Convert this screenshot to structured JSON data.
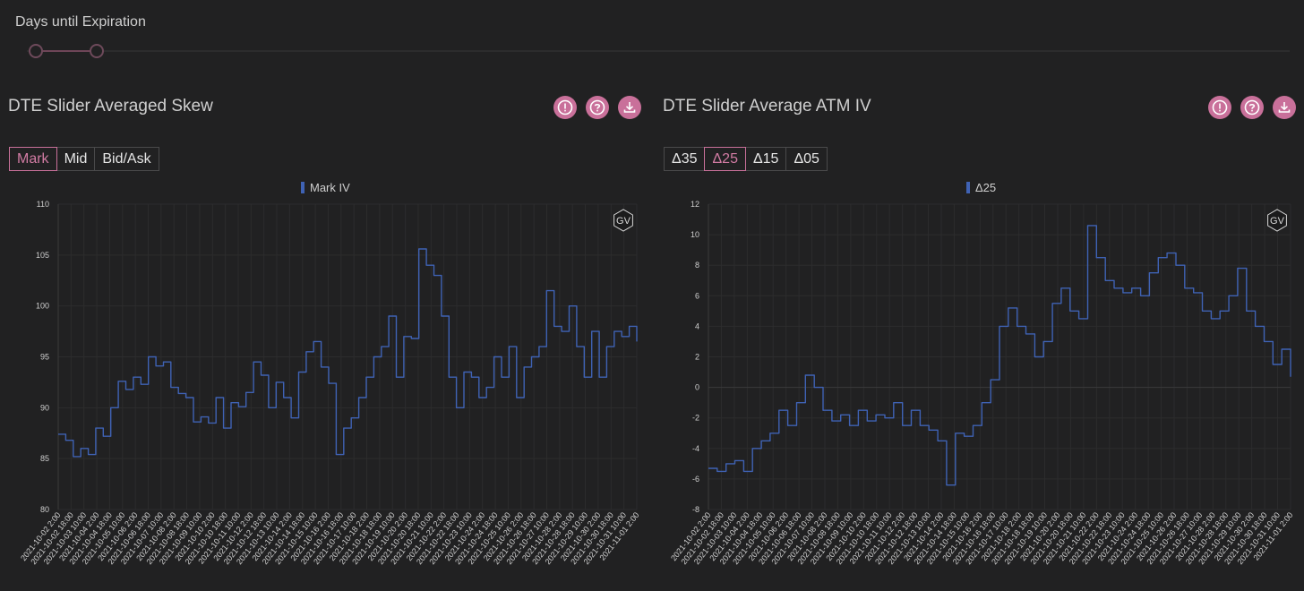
{
  "header": {
    "dte_label": "Days until Expiration"
  },
  "panels": [
    {
      "title": "DTE Slider Averaged Skew",
      "buttons": [
        "Mark",
        "Mid",
        "Bid/Ask"
      ],
      "active": 0,
      "legend": "Mark IV",
      "badge": "GV"
    },
    {
      "title": "DTE Slider Average ATM IV",
      "buttons": [
        "Δ35",
        "Δ25",
        "Δ15",
        "Δ05"
      ],
      "active": 1,
      "legend": "Δ25",
      "badge": "GV"
    }
  ],
  "icons": [
    "info-circle-icon",
    "question-circle-icon",
    "download-icon"
  ],
  "colors": {
    "accent": "#c9709a",
    "series": "#3f62b4",
    "background": "#212122"
  },
  "chart_data": [
    {
      "type": "line",
      "title": "DTE Slider Averaged Skew",
      "series": [
        {
          "name": "Mark IV",
          "points": [
            [
              0,
              87.4
            ],
            [
              1,
              86.8
            ],
            [
              2,
              85.2
            ],
            [
              3,
              86.0
            ],
            [
              4,
              85.4
            ],
            [
              5,
              88.0
            ],
            [
              6,
              87.2
            ],
            [
              7,
              90.0
            ],
            [
              8,
              92.6
            ],
            [
              9,
              91.8
            ],
            [
              10,
              93.0
            ],
            [
              11,
              92.3
            ],
            [
              12,
              95.0
            ],
            [
              13,
              94.1
            ],
            [
              14,
              94.5
            ],
            [
              15,
              92.0
            ],
            [
              16,
              91.4
            ],
            [
              17,
              91.0
            ],
            [
              18,
              88.6
            ],
            [
              19,
              89.1
            ],
            [
              20,
              88.5
            ],
            [
              21,
              91.0
            ],
            [
              22,
              88.0
            ],
            [
              23,
              90.5
            ],
            [
              24,
              90.1
            ],
            [
              25,
              91.5
            ],
            [
              26,
              94.5
            ],
            [
              27,
              93.2
            ],
            [
              28,
              90.0
            ],
            [
              29,
              92.5
            ],
            [
              30,
              91.0
            ],
            [
              31,
              89.0
            ],
            [
              32,
              93.5
            ],
            [
              33,
              95.5
            ],
            [
              34,
              96.5
            ],
            [
              35,
              94.0
            ],
            [
              36,
              92.4
            ],
            [
              37,
              85.4
            ],
            [
              38,
              88.0
            ],
            [
              39,
              89.0
            ],
            [
              40,
              91.0
            ],
            [
              41,
              93.0
            ],
            [
              42,
              95.0
            ],
            [
              43,
              96.0
            ],
            [
              44,
              99.0
            ],
            [
              45,
              93.0
            ],
            [
              46,
              97.0
            ],
            [
              47,
              96.8
            ],
            [
              48,
              105.6
            ],
            [
              49,
              104.0
            ],
            [
              50,
              103.0
            ],
            [
              51,
              99.0
            ],
            [
              52,
              93.0
            ],
            [
              53,
              90.0
            ],
            [
              54,
              93.5
            ],
            [
              55,
              93.0
            ],
            [
              56,
              91.0
            ],
            [
              57,
              92.0
            ],
            [
              58,
              95.0
            ],
            [
              59,
              93.0
            ],
            [
              60,
              96.0
            ],
            [
              61,
              91.0
            ],
            [
              62,
              94.0
            ],
            [
              63,
              95.0
            ],
            [
              64,
              96.0
            ],
            [
              65,
              101.5
            ],
            [
              66,
              98.0
            ],
            [
              67,
              97.5
            ],
            [
              68,
              100.0
            ],
            [
              69,
              96.0
            ],
            [
              70,
              93.0
            ],
            [
              71,
              97.5
            ],
            [
              72,
              93.0
            ],
            [
              73,
              96.0
            ],
            [
              74,
              97.5
            ],
            [
              75,
              97.0
            ],
            [
              76,
              98.0
            ],
            [
              77,
              96.5
            ]
          ]
        }
      ],
      "x_labels": [
        "2021-10-02 2:00",
        "2021-10-02 18:00",
        "2021-10-03 10:00",
        "2021-10-04 2:00",
        "2021-10-04 18:00",
        "2021-10-05 10:00",
        "2021-10-06 2:00",
        "2021-10-06 18:00",
        "2021-10-07 10:00",
        "2021-10-08 2:00",
        "2021-10-08 18:00",
        "2021-10-09 10:00",
        "2021-10-10 2:00",
        "2021-10-10 18:00",
        "2021-10-11 10:00",
        "2021-10-12 2:00",
        "2021-10-12 18:00",
        "2021-10-13 10:00",
        "2021-10-14 2:00",
        "2021-10-14 18:00",
        "2021-10-15 10:00",
        "2021-10-16 2:00",
        "2021-10-16 18:00",
        "2021-10-17 10:00",
        "2021-10-18 2:00",
        "2021-10-18 18:00",
        "2021-10-19 10:00",
        "2021-10-20 2:00",
        "2021-10-20 18:00",
        "2021-10-21 10:00",
        "2021-10-22 2:00",
        "2021-10-22 18:00",
        "2021-10-23 10:00",
        "2021-10-24 2:00",
        "2021-10-24 18:00",
        "2021-10-25 10:00",
        "2021-10-26 2:00",
        "2021-10-26 18:00",
        "2021-10-27 10:00",
        "2021-10-28 2:00",
        "2021-10-28 18:00",
        "2021-10-29 10:00",
        "2021-10-30 2:00",
        "2021-10-30 18:00",
        "2021-10-31 10:00",
        "2021-11-01 2:00"
      ],
      "y_ticks": [
        80,
        85,
        90,
        95,
        100,
        105,
        110
      ],
      "ylim": [
        80,
        110
      ],
      "grid": true,
      "legend_position": "top-center"
    },
    {
      "type": "line",
      "title": "DTE Slider Average ATM IV",
      "series": [
        {
          "name": "Δ25",
          "points": [
            [
              0,
              -5.3
            ],
            [
              1,
              -5.5
            ],
            [
              2,
              -5.0
            ],
            [
              3,
              -4.8
            ],
            [
              4,
              -5.5
            ],
            [
              5,
              -4.0
            ],
            [
              6,
              -3.5
            ],
            [
              7,
              -3.0
            ],
            [
              8,
              -1.5
            ],
            [
              9,
              -2.5
            ],
            [
              10,
              -1.0
            ],
            [
              11,
              0.8
            ],
            [
              12,
              0.0
            ],
            [
              13,
              -1.5
            ],
            [
              14,
              -2.2
            ],
            [
              15,
              -1.8
            ],
            [
              16,
              -2.5
            ],
            [
              17,
              -1.5
            ],
            [
              18,
              -2.2
            ],
            [
              19,
              -1.8
            ],
            [
              20,
              -2.0
            ],
            [
              21,
              -1.0
            ],
            [
              22,
              -2.5
            ],
            [
              23,
              -1.5
            ],
            [
              24,
              -2.5
            ],
            [
              25,
              -2.8
            ],
            [
              26,
              -3.5
            ],
            [
              27,
              -6.4
            ],
            [
              28,
              -3.0
            ],
            [
              29,
              -3.2
            ],
            [
              30,
              -2.5
            ],
            [
              31,
              -1.0
            ],
            [
              32,
              0.5
            ],
            [
              33,
              4.0
            ],
            [
              34,
              5.2
            ],
            [
              35,
              4.0
            ],
            [
              36,
              3.5
            ],
            [
              37,
              2.0
            ],
            [
              38,
              3.0
            ],
            [
              39,
              5.5
            ],
            [
              40,
              6.5
            ],
            [
              41,
              5.0
            ],
            [
              42,
              4.5
            ],
            [
              43,
              10.6
            ],
            [
              44,
              8.5
            ],
            [
              45,
              7.0
            ],
            [
              46,
              6.5
            ],
            [
              47,
              6.2
            ],
            [
              48,
              6.5
            ],
            [
              49,
              6.0
            ],
            [
              50,
              7.5
            ],
            [
              51,
              8.5
            ],
            [
              52,
              8.8
            ],
            [
              53,
              8.0
            ],
            [
              54,
              6.5
            ],
            [
              55,
              6.2
            ],
            [
              56,
              5.0
            ],
            [
              57,
              4.5
            ],
            [
              58,
              5.0
            ],
            [
              59,
              6.0
            ],
            [
              60,
              7.8
            ],
            [
              61,
              5.0
            ],
            [
              62,
              4.0
            ],
            [
              63,
              3.0
            ],
            [
              64,
              1.5
            ],
            [
              65,
              2.5
            ],
            [
              66,
              0.7
            ]
          ]
        }
      ],
      "x_labels": [
        "2021-10-02 2:00",
        "2021-10-02 18:00",
        "2021-10-03 10:00",
        "2021-10-04 2:00",
        "2021-10-04 18:00",
        "2021-10-05 10:00",
        "2021-10-06 2:00",
        "2021-10-06 18:00",
        "2021-10-07 10:00",
        "2021-10-08 2:00",
        "2021-10-08 18:00",
        "2021-10-09 10:00",
        "2021-10-10 2:00",
        "2021-10-10 18:00",
        "2021-10-11 10:00",
        "2021-10-12 2:00",
        "2021-10-12 18:00",
        "2021-10-13 10:00",
        "2021-10-14 2:00",
        "2021-10-14 18:00",
        "2021-10-15 10:00",
        "2021-10-16 2:00",
        "2021-10-16 18:00",
        "2021-10-17 10:00",
        "2021-10-18 2:00",
        "2021-10-18 18:00",
        "2021-10-19 10:00",
        "2021-10-20 2:00",
        "2021-10-20 18:00",
        "2021-10-21 10:00",
        "2021-10-22 2:00",
        "2021-10-22 18:00",
        "2021-10-23 10:00",
        "2021-10-24 2:00",
        "2021-10-24 18:00",
        "2021-10-25 10:00",
        "2021-10-26 2:00",
        "2021-10-26 18:00",
        "2021-10-27 10:00",
        "2021-10-28 2:00",
        "2021-10-28 18:00",
        "2021-10-29 10:00",
        "2021-10-30 2:00",
        "2021-10-30 18:00",
        "2021-10-31 10:00",
        "2021-11-01 2:00"
      ],
      "y_ticks": [
        -8,
        -6,
        -4,
        -2,
        0,
        2,
        4,
        6,
        8,
        10,
        12
      ],
      "ylim": [
        -8,
        12
      ],
      "grid": true,
      "legend_position": "top-center"
    }
  ]
}
